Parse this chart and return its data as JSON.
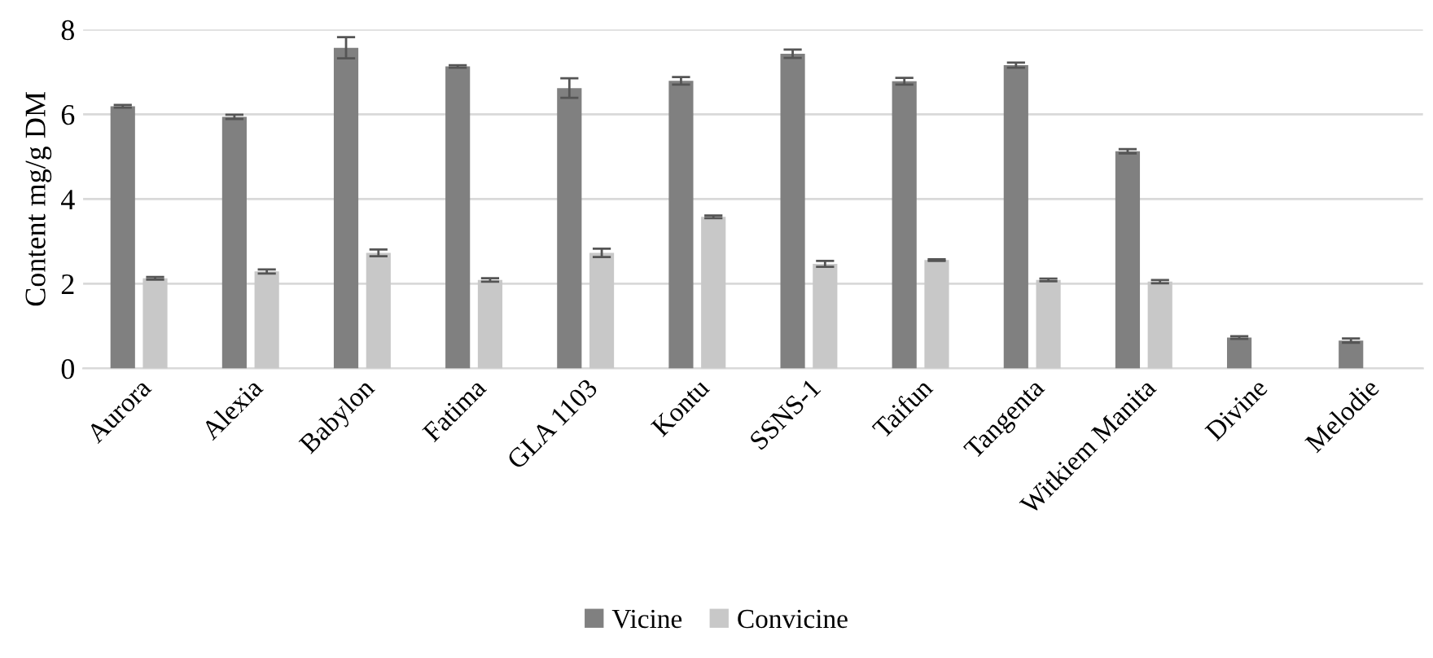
{
  "chart_data": {
    "type": "bar",
    "ylabel": "Content mg/g DM",
    "categories": [
      "Aurora",
      "Alexia",
      "Babylon",
      "Fatima",
      "GLA 1103",
      "Kontu",
      "SSNS-1",
      "Taifun",
      "Tangenta",
      "Witkiem Manita",
      "Divine",
      "Melodie"
    ],
    "series": [
      {
        "name": "Vicine",
        "color": "#808080",
        "values": [
          6.19,
          5.94,
          7.57,
          7.13,
          6.62,
          6.79,
          7.43,
          6.78,
          7.16,
          5.13,
          0.73,
          0.66
        ],
        "errors": [
          0.03,
          0.05,
          0.25,
          0.03,
          0.23,
          0.09,
          0.1,
          0.08,
          0.06,
          0.05,
          0.03,
          0.05
        ]
      },
      {
        "name": "Convicine",
        "color": "#c8c8c8",
        "values": [
          2.13,
          2.29,
          2.73,
          2.09,
          2.73,
          3.58,
          2.47,
          2.56,
          2.09,
          2.05,
          null,
          null
        ],
        "errors": [
          0.03,
          0.05,
          0.08,
          0.04,
          0.1,
          0.03,
          0.07,
          0.02,
          0.03,
          0.04,
          null,
          null
        ]
      }
    ],
    "ylim": [
      0,
      8
    ],
    "yticks": [
      0,
      2,
      4,
      6,
      8
    ],
    "grid": "y",
    "legend": "bottom"
  }
}
